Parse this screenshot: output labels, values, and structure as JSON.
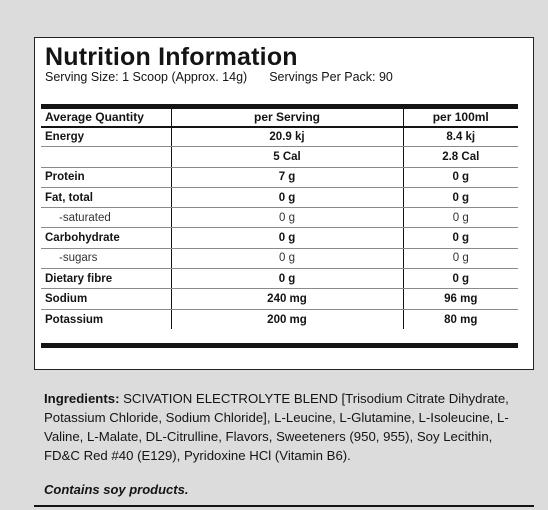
{
  "panel": {
    "title": "Nutrition Information",
    "serving_size": "Serving Size: 1 Scoop (Approx. 14g)",
    "servings_per_pack": "Servings Per Pack: 90"
  },
  "table": {
    "headers": [
      "Average Quantity",
      "per Serving",
      "per 100ml"
    ],
    "rows": [
      {
        "label": "Energy",
        "per_serving": "20.9 kj",
        "per_100ml": "8.4 kj"
      },
      {
        "label": "",
        "per_serving": "5 Cal",
        "per_100ml": "2.8 Cal"
      },
      {
        "label": "Protein",
        "per_serving": "7 g",
        "per_100ml": "0 g"
      },
      {
        "label": "Fat, total",
        "per_serving": "0 g",
        "per_100ml": "0 g"
      },
      {
        "label": "-saturated",
        "per_serving": "0 g",
        "per_100ml": "0 g"
      },
      {
        "label": "Carbohydrate",
        "per_serving": "0 g",
        "per_100ml": "0 g"
      },
      {
        "label": "-sugars",
        "per_serving": "0 g",
        "per_100ml": "0 g"
      },
      {
        "label": "Dietary fibre",
        "per_serving": "0 g",
        "per_100ml": "0 g"
      },
      {
        "label": "Sodium",
        "per_serving": "240 mg",
        "per_100ml": "96 mg"
      },
      {
        "label": "Potassium",
        "per_serving": "200 mg",
        "per_100ml": "80 mg"
      }
    ]
  },
  "ingredients": {
    "label": "Ingredients:",
    "text": "SCIVATION ELECTROLYTE BLEND [Trisodium Citrate Dihydrate, Potassium Chloride, Sodium Chloride], L-Leucine, L-Glutamine, L-Isoleucine, L-Valine, L-Malate, DL-Citrulline, Flavors, Sweeteners (950, 955), Soy Lecithin, FD&C Red #40 (E129), Pyridoxine HCl (Vitamin B6).",
    "allergen": "Contains soy products."
  }
}
